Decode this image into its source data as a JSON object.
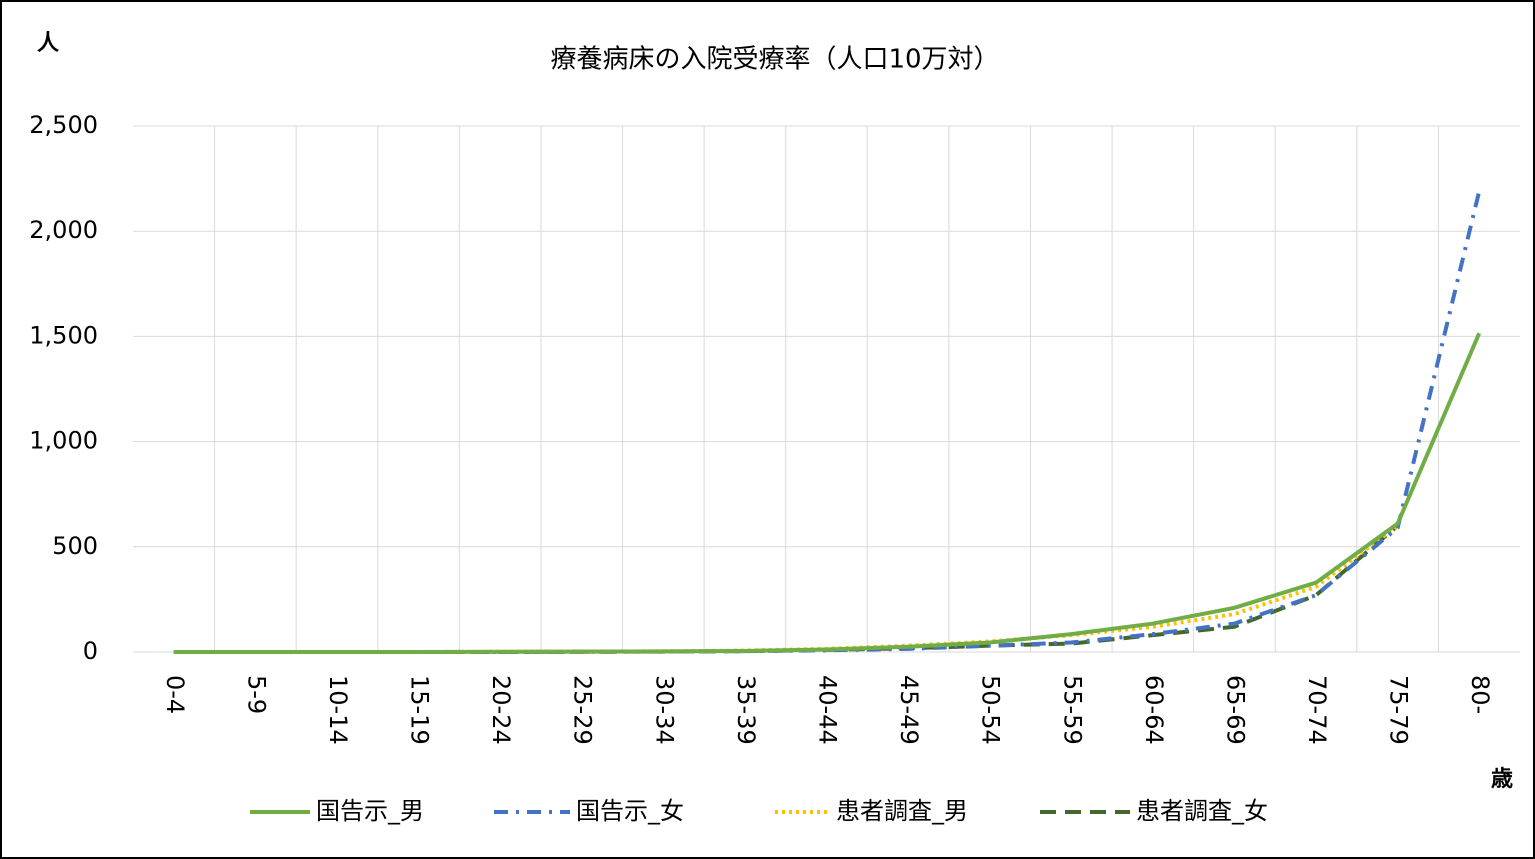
{
  "chart_data": {
    "type": "line",
    "title": "療養病床の入院受療率（人口10万対）",
    "y_label": "人",
    "x_label": "歳",
    "categories": [
      "0-4",
      "5-9",
      "10-14",
      "15-19",
      "20-24",
      "25-29",
      "30-34",
      "35-39",
      "40-44",
      "45-49",
      "50-54",
      "55-59",
      "60-64",
      "65-69",
      "70-74",
      "75-79",
      "80-"
    ],
    "series": [
      {
        "name": "国告示_男",
        "color": "#70ad47",
        "dash": "solid",
        "values": [
          0,
          0,
          0,
          0,
          1,
          2,
          3,
          5,
          12,
          25,
          45,
          85,
          135,
          210,
          330,
          610,
          1515
        ]
      },
      {
        "name": "国告示_女",
        "color": "#4472c4",
        "dash": "dashdot",
        "values": [
          0,
          0,
          0,
          0,
          0,
          1,
          2,
          4,
          8,
          15,
          30,
          45,
          85,
          135,
          270,
          590,
          2190
        ]
      },
      {
        "name": "患者調査_男",
        "color": "#ffc000",
        "dash": "dot",
        "values": [
          0,
          0,
          0,
          0,
          1,
          2,
          3,
          7,
          15,
          30,
          50,
          80,
          120,
          180,
          310,
          600,
          null
        ]
      },
      {
        "name": "患者調査_女",
        "color": "#43682b",
        "dash": "dash",
        "values": [
          0,
          0,
          0,
          0,
          0,
          1,
          2,
          4,
          10,
          18,
          30,
          40,
          80,
          120,
          270,
          600,
          null
        ]
      }
    ],
    "ylim": [
      0,
      2500
    ],
    "yticks": [
      0,
      500,
      {
        "value": 1000,
        "label": "1,000"
      },
      {
        "value": 1500,
        "label": "1,500"
      },
      {
        "value": 2000,
        "label": "2,000"
      },
      {
        "value": 2500,
        "label": "2,500"
      }
    ],
    "grid": true,
    "legend": "bottom"
  }
}
